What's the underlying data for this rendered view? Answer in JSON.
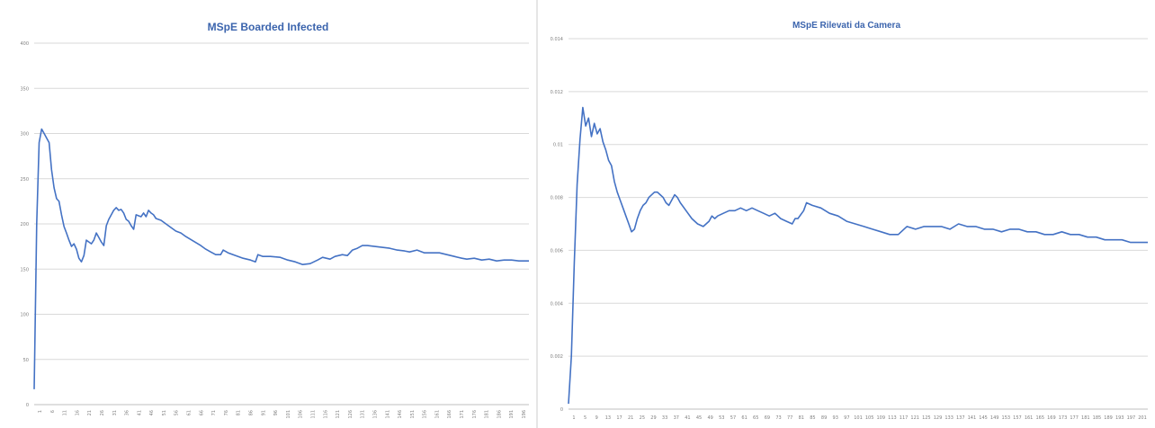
{
  "colors": {
    "series": "#4472c4",
    "title": "#3b64ad",
    "grid": "#d9d9d9",
    "tick": "#808080"
  },
  "chart_data": [
    {
      "type": "line",
      "title": "MSpE Boarded Infected",
      "xlabel": "",
      "ylabel": "",
      "ylim": [
        0,
        400
      ],
      "y_ticks": [
        "0",
        "50",
        "100",
        "150",
        "200",
        "250",
        "300",
        "350",
        "400"
      ],
      "grid": true,
      "legend": "none",
      "x_tick_labels": [
        "1",
        "6",
        "11",
        "16",
        "21",
        "26",
        "31",
        "36",
        "41",
        "46",
        "51",
        "56",
        "61",
        "66",
        "71",
        "76",
        "81",
        "86",
        "91",
        "96",
        "101",
        "106",
        "111",
        "116",
        "121",
        "126",
        "131",
        "136",
        "141",
        "146",
        "151",
        "156",
        "161",
        "166",
        "171",
        "176",
        "181",
        "186",
        "191",
        "196"
      ],
      "series": [
        {
          "x_range": [
            1,
            200
          ],
          "keypoints": [
            [
              1,
              17
            ],
            [
              2,
              200
            ],
            [
              3,
              290
            ],
            [
              4,
              305
            ],
            [
              5,
              300
            ],
            [
              6,
              295
            ],
            [
              7,
              290
            ],
            [
              8,
              260
            ],
            [
              9,
              240
            ],
            [
              10,
              228
            ],
            [
              11,
              225
            ],
            [
              12,
              210
            ],
            [
              13,
              197
            ],
            [
              14,
              190
            ],
            [
              15,
              182
            ],
            [
              16,
              175
            ],
            [
              17,
              178
            ],
            [
              18,
              172
            ],
            [
              19,
              162
            ],
            [
              20,
              158
            ],
            [
              21,
              165
            ],
            [
              22,
              182
            ],
            [
              23,
              180
            ],
            [
              24,
              178
            ],
            [
              25,
              182
            ],
            [
              26,
              190
            ],
            [
              27,
              185
            ],
            [
              28,
              180
            ],
            [
              29,
              176
            ],
            [
              30,
              198
            ],
            [
              31,
              205
            ],
            [
              32,
              210
            ],
            [
              33,
              215
            ],
            [
              34,
              218
            ],
            [
              35,
              215
            ],
            [
              36,
              216
            ],
            [
              37,
              212
            ],
            [
              38,
              205
            ],
            [
              39,
              203
            ],
            [
              40,
              198
            ],
            [
              41,
              194
            ],
            [
              42,
              210
            ],
            [
              43,
              209
            ],
            [
              44,
              208
            ],
            [
              45,
              212
            ],
            [
              46,
              208
            ],
            [
              47,
              215
            ],
            [
              48,
              212
            ],
            [
              49,
              210
            ],
            [
              50,
              206
            ],
            [
              52,
              204
            ],
            [
              55,
              198
            ],
            [
              58,
              192
            ],
            [
              60,
              190
            ],
            [
              62,
              186
            ],
            [
              65,
              181
            ],
            [
              68,
              176
            ],
            [
              70,
              172
            ],
            [
              72,
              169
            ],
            [
              74,
              166
            ],
            [
              76,
              166
            ],
            [
              77,
              171
            ],
            [
              79,
              168
            ],
            [
              82,
              165
            ],
            [
              85,
              162
            ],
            [
              88,
              160
            ],
            [
              90,
              158
            ],
            [
              91,
              166
            ],
            [
              93,
              164
            ],
            [
              96,
              164
            ],
            [
              100,
              163
            ],
            [
              103,
              160
            ],
            [
              106,
              158
            ],
            [
              109,
              155
            ],
            [
              112,
              156
            ],
            [
              115,
              160
            ],
            [
              117,
              163
            ],
            [
              120,
              161
            ],
            [
              122,
              164
            ],
            [
              125,
              166
            ],
            [
              127,
              165
            ],
            [
              129,
              171
            ],
            [
              131,
              173
            ],
            [
              133,
              176
            ],
            [
              135,
              176
            ],
            [
              138,
              175
            ],
            [
              141,
              174
            ],
            [
              144,
              173
            ],
            [
              147,
              171
            ],
            [
              150,
              170
            ],
            [
              152,
              169
            ],
            [
              155,
              171
            ],
            [
              158,
              168
            ],
            [
              161,
              168
            ],
            [
              164,
              168
            ],
            [
              167,
              166
            ],
            [
              170,
              164
            ],
            [
              173,
              162
            ],
            [
              175,
              161
            ],
            [
              178,
              162
            ],
            [
              181,
              160
            ],
            [
              184,
              161
            ],
            [
              187,
              159
            ],
            [
              190,
              160
            ],
            [
              193,
              160
            ],
            [
              196,
              159
            ],
            [
              200,
              159
            ]
          ]
        }
      ]
    },
    {
      "type": "line",
      "title": "MSpE Rilevati da Camera",
      "xlabel": "",
      "ylabel": "",
      "ylim": [
        0,
        0.014
      ],
      "y_ticks": [
        "0",
        "0.002",
        "0.004",
        "0.006",
        "0.008",
        "0.01",
        "0.012",
        "0.014"
      ],
      "grid": true,
      "legend": "none",
      "x_tick_labels": [
        "1",
        "5",
        "9",
        "13",
        "17",
        "21",
        "25",
        "29",
        "33",
        "37",
        "41",
        "45",
        "49",
        "53",
        "57",
        "61",
        "65",
        "69",
        "73",
        "77",
        "81",
        "85",
        "89",
        "93",
        "97",
        "101",
        "105",
        "109",
        "113",
        "117",
        "121",
        "125",
        "129",
        "133",
        "137",
        "141",
        "145",
        "149",
        "153",
        "157",
        "161",
        "165",
        "169",
        "173",
        "177",
        "181",
        "185",
        "189",
        "193",
        "197",
        "201"
      ],
      "series": [
        {
          "x_range": [
            1,
            203
          ],
          "keypoints": [
            [
              1,
              0.0002
            ],
            [
              2,
              0.002
            ],
            [
              3,
              0.0055
            ],
            [
              4,
              0.0085
            ],
            [
              5,
              0.0102
            ],
            [
              6,
              0.0114
            ],
            [
              7,
              0.0107
            ],
            [
              8,
              0.011
            ],
            [
              9,
              0.0103
            ],
            [
              10,
              0.0108
            ],
            [
              11,
              0.0104
            ],
            [
              12,
              0.0106
            ],
            [
              13,
              0.0101
            ],
            [
              14,
              0.0098
            ],
            [
              15,
              0.0094
            ],
            [
              16,
              0.0092
            ],
            [
              17,
              0.0086
            ],
            [
              18,
              0.0082
            ],
            [
              19,
              0.0079
            ],
            [
              20,
              0.0076
            ],
            [
              21,
              0.0073
            ],
            [
              22,
              0.007
            ],
            [
              23,
              0.0067
            ],
            [
              24,
              0.0068
            ],
            [
              25,
              0.0072
            ],
            [
              26,
              0.0075
            ],
            [
              27,
              0.0077
            ],
            [
              28,
              0.0078
            ],
            [
              29,
              0.008
            ],
            [
              30,
              0.0081
            ],
            [
              31,
              0.0082
            ],
            [
              32,
              0.0082
            ],
            [
              33,
              0.0081
            ],
            [
              34,
              0.008
            ],
            [
              35,
              0.0078
            ],
            [
              36,
              0.0077
            ],
            [
              37,
              0.0079
            ],
            [
              38,
              0.0081
            ],
            [
              39,
              0.008
            ],
            [
              40,
              0.0078
            ],
            [
              42,
              0.0075
            ],
            [
              44,
              0.0072
            ],
            [
              46,
              0.007
            ],
            [
              48,
              0.0069
            ],
            [
              50,
              0.0071
            ],
            [
              51,
              0.0073
            ],
            [
              52,
              0.0072
            ],
            [
              53,
              0.0073
            ],
            [
              55,
              0.0074
            ],
            [
              57,
              0.0075
            ],
            [
              59,
              0.0075
            ],
            [
              61,
              0.0076
            ],
            [
              63,
              0.0075
            ],
            [
              65,
              0.0076
            ],
            [
              67,
              0.0075
            ],
            [
              69,
              0.0074
            ],
            [
              71,
              0.0073
            ],
            [
              73,
              0.0074
            ],
            [
              75,
              0.0072
            ],
            [
              77,
              0.0071
            ],
            [
              79,
              0.007
            ],
            [
              80,
              0.0072
            ],
            [
              81,
              0.0072
            ],
            [
              83,
              0.0075
            ],
            [
              84,
              0.0078
            ],
            [
              86,
              0.0077
            ],
            [
              89,
              0.0076
            ],
            [
              92,
              0.0074
            ],
            [
              95,
              0.0073
            ],
            [
              98,
              0.0071
            ],
            [
              101,
              0.007
            ],
            [
              104,
              0.0069
            ],
            [
              107,
              0.0068
            ],
            [
              110,
              0.0067
            ],
            [
              113,
              0.0066
            ],
            [
              116,
              0.0066
            ],
            [
              119,
              0.0069
            ],
            [
              122,
              0.0068
            ],
            [
              125,
              0.0069
            ],
            [
              128,
              0.0069
            ],
            [
              131,
              0.0069
            ],
            [
              134,
              0.0068
            ],
            [
              137,
              0.007
            ],
            [
              140,
              0.0069
            ],
            [
              143,
              0.0069
            ],
            [
              146,
              0.0068
            ],
            [
              149,
              0.0068
            ],
            [
              152,
              0.0067
            ],
            [
              155,
              0.0068
            ],
            [
              158,
              0.0068
            ],
            [
              161,
              0.0067
            ],
            [
              164,
              0.0067
            ],
            [
              167,
              0.0066
            ],
            [
              170,
              0.0066
            ],
            [
              173,
              0.0067
            ],
            [
              176,
              0.0066
            ],
            [
              179,
              0.0066
            ],
            [
              182,
              0.0065
            ],
            [
              185,
              0.0065
            ],
            [
              188,
              0.0064
            ],
            [
              191,
              0.0064
            ],
            [
              194,
              0.0064
            ],
            [
              197,
              0.0063
            ],
            [
              200,
              0.0063
            ],
            [
              203,
              0.0063
            ]
          ]
        }
      ]
    }
  ]
}
